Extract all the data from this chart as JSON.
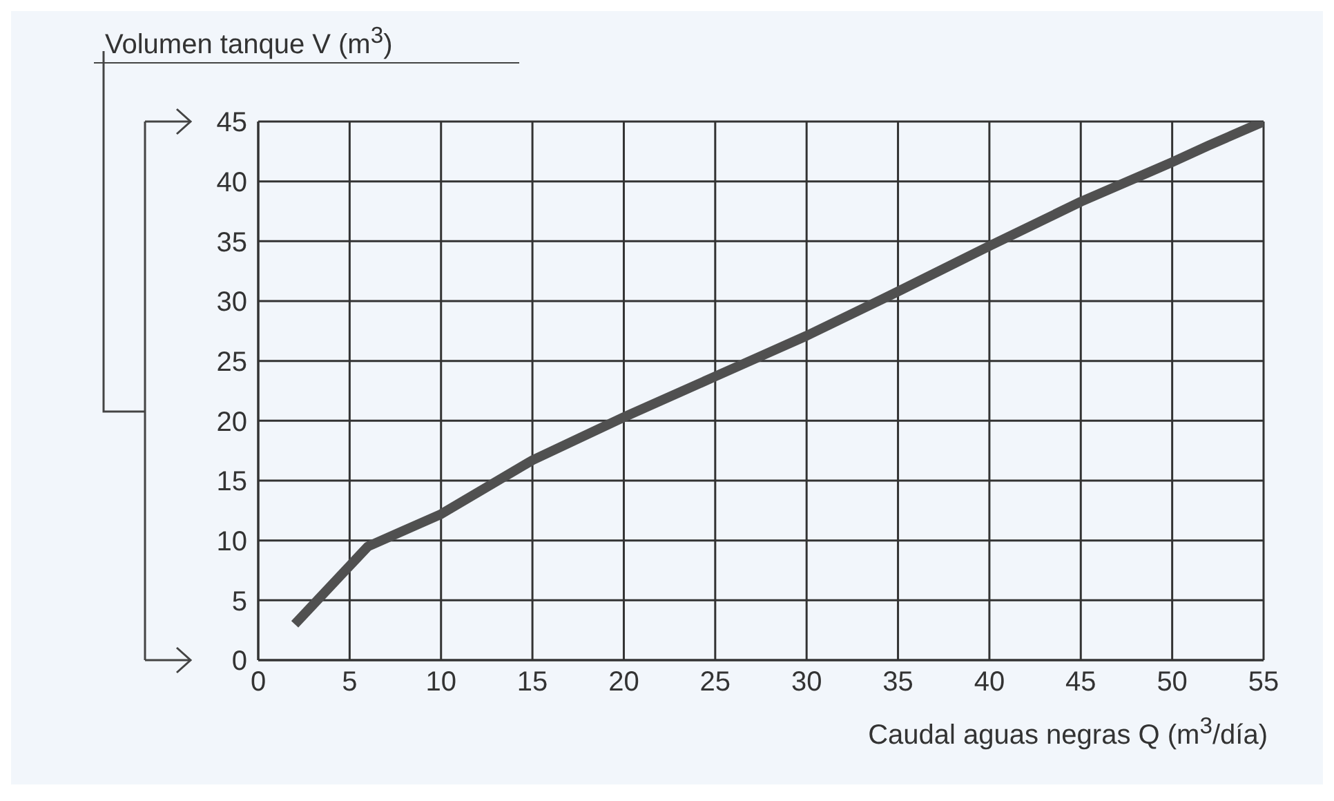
{
  "chart_data": {
    "type": "line",
    "ylabel": "Volumen tanque V (m$^{3}$)",
    "xlabel": "Caudal aguas negras Q (m$^{3}$/día)",
    "x": [
      2,
      6,
      10,
      15,
      20,
      25,
      30,
      35,
      40,
      45,
      50,
      52,
      55
    ],
    "series": [
      {
        "color": "#505050",
        "values": [
          3,
          9.5,
          12.2,
          16.7,
          20.3,
          23.7,
          27.1,
          30.8,
          34.6,
          38.3,
          41.6,
          43,
          45
        ]
      }
    ],
    "xlim": [
      0,
      55
    ],
    "xticks": [
      0,
      5,
      10,
      15,
      20,
      25,
      30,
      35,
      40,
      45,
      50,
      55
    ],
    "ylim": [
      0,
      45
    ],
    "yticks": [
      0,
      5,
      10,
      15,
      20,
      25,
      30,
      35,
      40,
      45
    ],
    "grid": true,
    "marker": "none",
    "line_style": "solid"
  }
}
